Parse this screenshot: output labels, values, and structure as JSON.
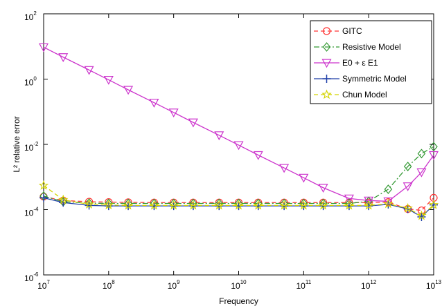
{
  "chart_data": {
    "type": "line",
    "title": "",
    "xlabel": "Frequency",
    "ylabel": "L² relative error",
    "xscale": "log",
    "yscale": "log",
    "xlim": [
      10000000.0,
      10000000000000.0
    ],
    "ylim": [
      1e-06,
      100.0
    ],
    "grid": false,
    "legend_position": "top-right",
    "x_ticks": [
      {
        "value": 10000000.0,
        "base": "10",
        "exp": "7"
      },
      {
        "value": 100000000.0,
        "base": "10",
        "exp": "8"
      },
      {
        "value": 1000000000.0,
        "base": "10",
        "exp": "9"
      },
      {
        "value": 10000000000.0,
        "base": "10",
        "exp": "10"
      },
      {
        "value": 100000000000.0,
        "base": "10",
        "exp": "11"
      },
      {
        "value": 1000000000000.0,
        "base": "10",
        "exp": "12"
      },
      {
        "value": 10000000000000.0,
        "base": "10",
        "exp": "13"
      }
    ],
    "y_ticks": [
      {
        "value": 1e-06,
        "base": "10",
        "exp": "-6"
      },
      {
        "value": 0.0001,
        "base": "10",
        "exp": "-4"
      },
      {
        "value": 0.01,
        "base": "10",
        "exp": "-2"
      },
      {
        "value": 1,
        "base": "10",
        "exp": "0"
      },
      {
        "value": 100.0,
        "base": "10",
        "exp": "2"
      }
    ],
    "series": [
      {
        "name": "GITC",
        "color": "#ff3333",
        "dash": "6,4",
        "marker": "circle",
        "x": [
          10000000.0,
          20000000.0,
          50000000.0,
          100000000.0,
          200000000.0,
          500000000.0,
          1000000000.0,
          2000000000.0,
          5000000000.0,
          10000000000.0,
          20000000000.0,
          50000000000.0,
          100000000000.0,
          200000000000.0,
          500000000000.0,
          1000000000000.0,
          2000000000000.0,
          4000000000000.0,
          6500000000000.0,
          10000000000000.0
        ],
        "y": [
          0.00025,
          0.00019,
          0.000175,
          0.00017,
          0.000168,
          0.000165,
          0.000165,
          0.000165,
          0.000165,
          0.000165,
          0.000165,
          0.000165,
          0.000165,
          0.000165,
          0.000165,
          0.000165,
          0.00017,
          0.000105,
          9.5e-05,
          0.00023
        ]
      },
      {
        "name": "Resistive Model",
        "color": "#339933",
        "dash": "8,3,2,3",
        "marker": "diamond",
        "x": [
          10000000.0,
          20000000.0,
          50000000.0,
          100000000.0,
          200000000.0,
          500000000.0,
          1000000000.0,
          2000000000.0,
          5000000000.0,
          10000000000.0,
          20000000000.0,
          50000000000.0,
          100000000000.0,
          200000000000.0,
          500000000000.0,
          1000000000000.0,
          2000000000000.0,
          4000000000000.0,
          6500000000000.0,
          10000000000000.0
        ],
        "y": [
          0.00026,
          0.000175,
          0.000158,
          0.000155,
          0.000155,
          0.000155,
          0.000155,
          0.000155,
          0.000155,
          0.000155,
          0.000155,
          0.000155,
          0.000155,
          0.000155,
          0.000155,
          0.00018,
          0.00042,
          0.0021,
          0.0052,
          0.0085
        ]
      },
      {
        "name": "E0 + ε E1",
        "color": "#cc33cc",
        "dash": "",
        "marker": "triangle-down",
        "x": [
          10000000.0,
          20000000.0,
          50000000.0,
          100000000.0,
          200000000.0,
          500000000.0,
          1000000000.0,
          2000000000.0,
          5000000000.0,
          10000000000.0,
          20000000000.0,
          50000000000.0,
          100000000000.0,
          200000000000.0,
          500000000000.0,
          1000000000000.0,
          2000000000000.0,
          4000000000000.0,
          6500000000000.0,
          10000000000000.0
        ],
        "y": [
          9.5,
          4.7,
          1.9,
          0.95,
          0.47,
          0.19,
          0.095,
          0.047,
          0.019,
          0.0095,
          0.0047,
          0.0019,
          0.00095,
          0.00047,
          0.00022,
          0.00019,
          0.00018,
          0.00052,
          0.0014,
          0.0047
        ]
      },
      {
        "name": "Symmetric Model",
        "color": "#1f3fa8",
        "dash": "",
        "marker": "plus",
        "x": [
          10000000.0,
          20000000.0,
          50000000.0,
          100000000.0,
          200000000.0,
          500000000.0,
          1000000000.0,
          2000000000.0,
          5000000000.0,
          10000000000.0,
          20000000000.0,
          50000000000.0,
          100000000000.0,
          200000000000.0,
          500000000000.0,
          1000000000000.0,
          2000000000000.0,
          4000000000000.0,
          6500000000000.0,
          10000000000000.0
        ],
        "y": [
          0.00023,
          0.000165,
          0.000135,
          0.00013,
          0.00013,
          0.00013,
          0.00013,
          0.00013,
          0.00013,
          0.00013,
          0.00013,
          0.00013,
          0.00013,
          0.00013,
          0.00013,
          0.00013,
          0.000145,
          0.000105,
          6e-05,
          0.00014
        ]
      },
      {
        "name": "Chun Model",
        "color": "#d4d400",
        "dash": "6,4",
        "marker": "star",
        "x": [
          10000000.0,
          20000000.0,
          50000000.0,
          100000000.0,
          200000000.0,
          500000000.0,
          1000000000.0,
          2000000000.0,
          5000000000.0,
          10000000000.0,
          20000000000.0,
          50000000000.0,
          100000000000.0,
          200000000000.0,
          500000000000.0,
          1000000000000.0,
          2000000000000.0,
          4000000000000.0,
          6500000000000.0,
          10000000000000.0
        ],
        "y": [
          0.00055,
          0.0002,
          0.000145,
          0.000138,
          0.000135,
          0.000135,
          0.000135,
          0.000135,
          0.000135,
          0.000135,
          0.000135,
          0.000135,
          0.000135,
          0.000135,
          0.000135,
          0.000135,
          0.00015,
          0.00011,
          6.5e-05,
          0.00014
        ]
      }
    ]
  }
}
